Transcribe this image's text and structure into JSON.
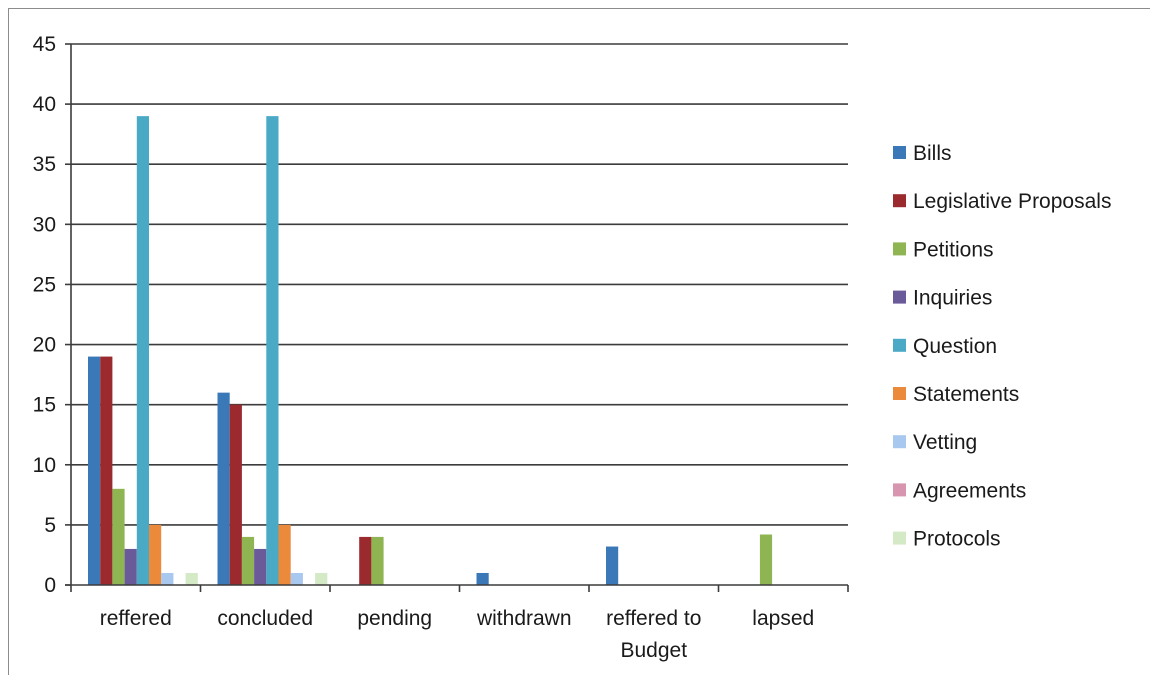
{
  "chart_data": {
    "type": "bar",
    "title": "",
    "xlabel": "",
    "ylabel": "",
    "ylim": [
      0,
      45
    ],
    "yticks": [
      0,
      5,
      10,
      15,
      20,
      25,
      30,
      35,
      40,
      45
    ],
    "grid": true,
    "legend_position": "right",
    "categories": [
      [
        "reffered"
      ],
      [
        "concluded"
      ],
      [
        "pending"
      ],
      [
        "withdrawn"
      ],
      [
        "reffered to",
        "Budget"
      ],
      [
        "lapsed"
      ]
    ],
    "series": [
      {
        "name": "Bills",
        "color": "#3b78b8",
        "values": [
          19,
          16,
          0,
          1,
          3.2,
          0
        ]
      },
      {
        "name": "Legislative Proposals",
        "color": "#9b2a2e",
        "values": [
          19,
          15,
          4,
          0,
          0,
          0
        ]
      },
      {
        "name": "Petitions",
        "color": "#8fb452",
        "values": [
          8,
          4,
          4,
          0,
          0,
          4.2
        ]
      },
      {
        "name": "Inquiries",
        "color": "#6b5a9a",
        "values": [
          3,
          3,
          0,
          0,
          0,
          0
        ]
      },
      {
        "name": "Question",
        "color": "#4aaac6",
        "values": [
          39,
          39,
          0,
          0,
          0,
          0
        ]
      },
      {
        "name": "Statements",
        "color": "#ec8a3c",
        "values": [
          5,
          5,
          0,
          0,
          0,
          0
        ]
      },
      {
        "name": "Vetting",
        "color": "#a9c8ef",
        "values": [
          1,
          1,
          0,
          0,
          0,
          0
        ]
      },
      {
        "name": "Agreements",
        "color": "#d795b0",
        "values": [
          0,
          0,
          0,
          0,
          0,
          0
        ]
      },
      {
        "name": "Protocols",
        "color": "#d4e9c6",
        "values": [
          1,
          1,
          0,
          0,
          0,
          0
        ]
      }
    ]
  }
}
